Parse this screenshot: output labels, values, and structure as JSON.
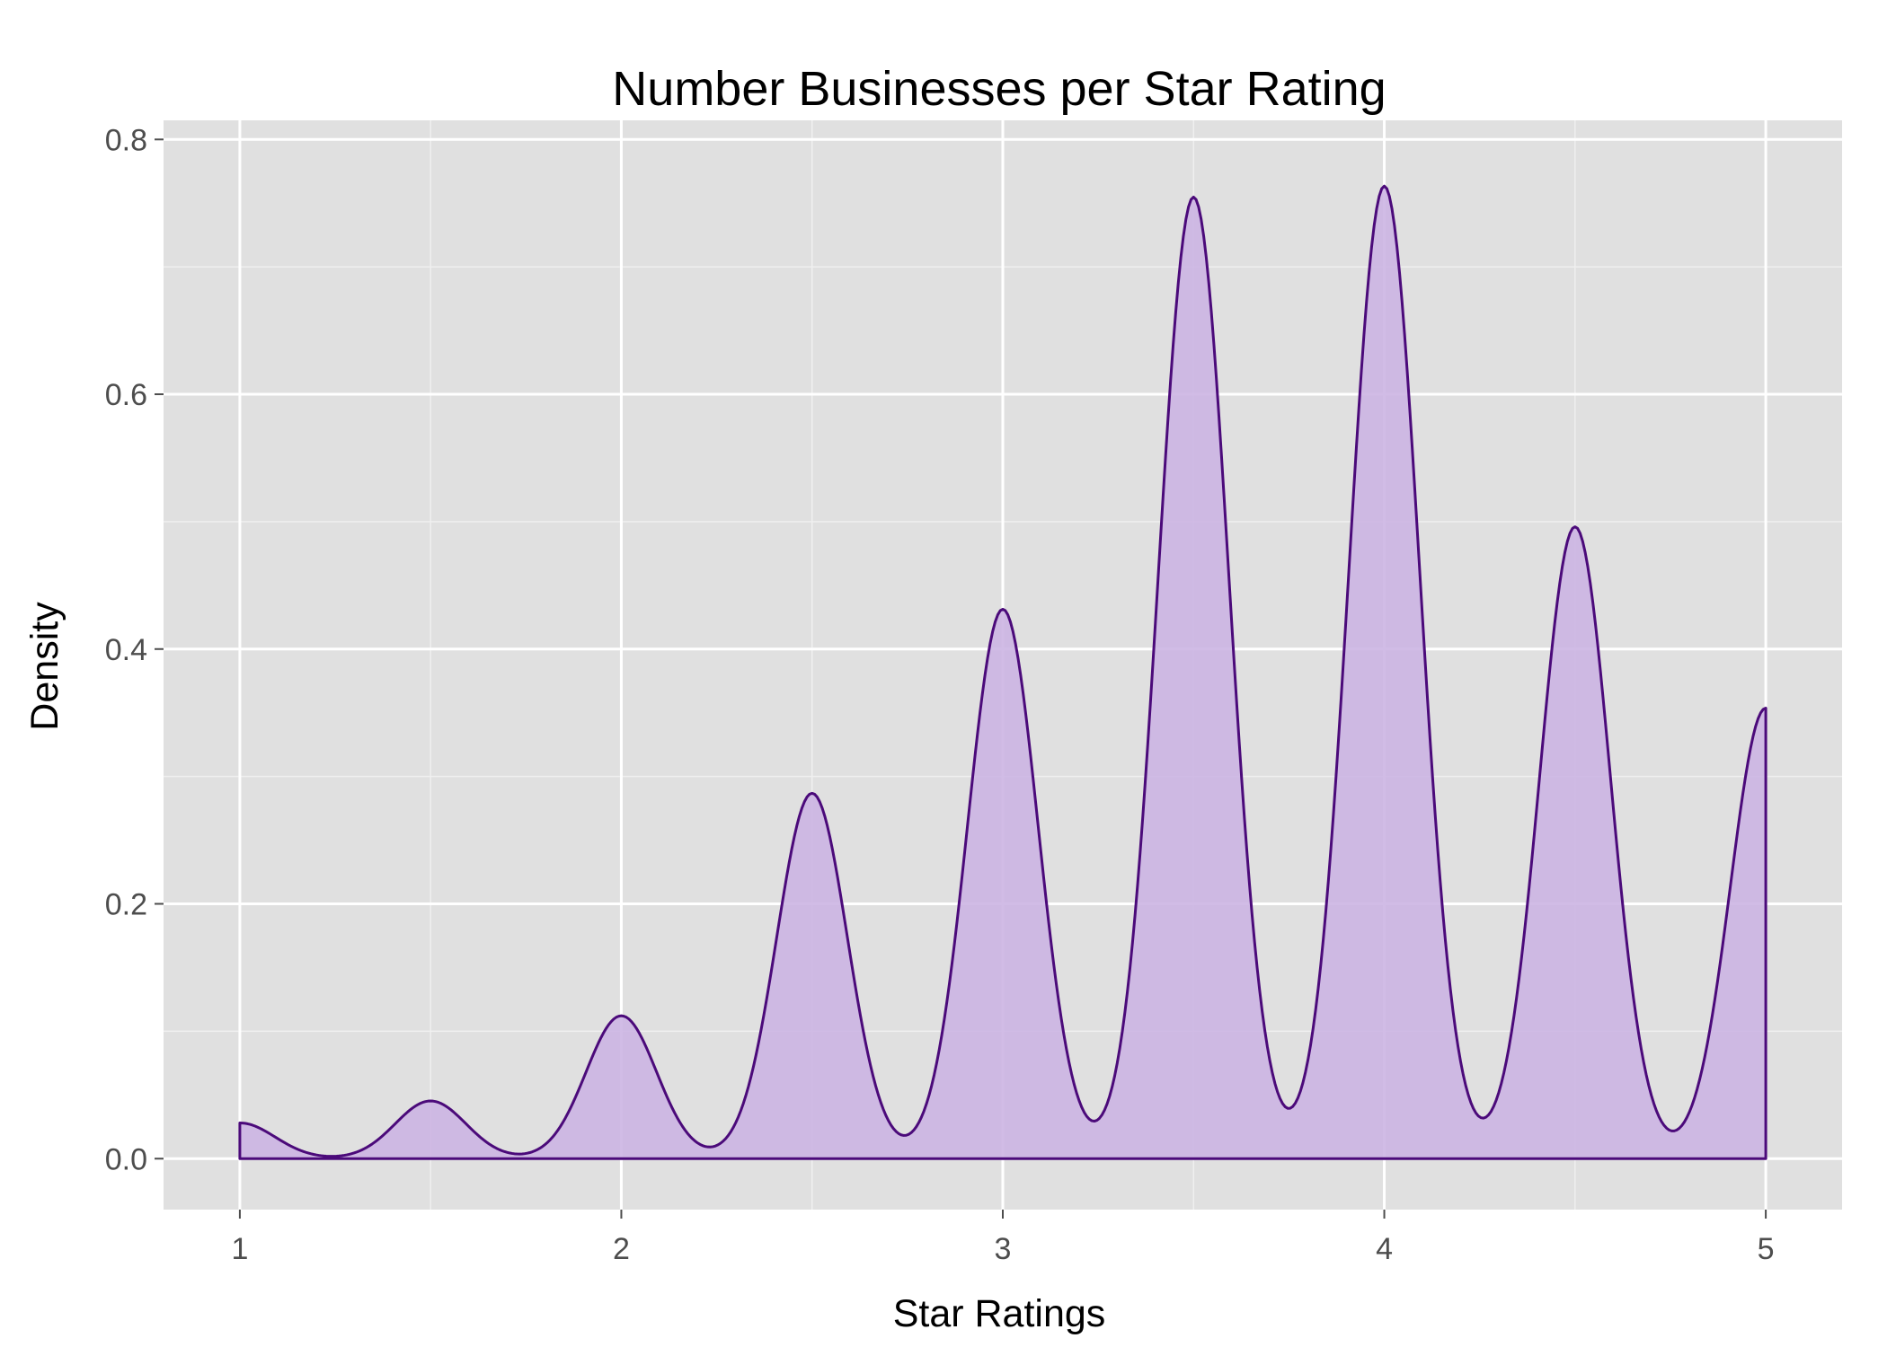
{
  "chart_data": {
    "type": "area",
    "title": "Number Businesses per Star Rating",
    "xlabel": "Star Ratings",
    "ylabel": "Density",
    "xlim": [
      0.8,
      5.2
    ],
    "ylim": [
      -0.04,
      0.815
    ],
    "x_ticks": [
      {
        "value": 1,
        "label": "1"
      },
      {
        "value": 2,
        "label": "2"
      },
      {
        "value": 3,
        "label": "3"
      },
      {
        "value": 4,
        "label": "4"
      },
      {
        "value": 5,
        "label": "5"
      }
    ],
    "y_ticks": [
      {
        "value": 0,
        "label": "0.0"
      },
      {
        "value": 0.2,
        "label": "0.2"
      },
      {
        "value": 0.4,
        "label": "0.4"
      },
      {
        "value": 0.6,
        "label": "0.6"
      },
      {
        "value": 0.8,
        "label": "0.8"
      }
    ],
    "grid": true,
    "fill_color": "#cbb3e3",
    "line_color": "#4b0a7a",
    "panel_color": "#e0e0e0",
    "grid_color": "#ffffff",
    "density_components": {
      "bandwidth": 0.0925,
      "weights": [
        {
          "x": 1.0,
          "w": 0.0065
        },
        {
          "x": 1.5,
          "w": 0.0105
        },
        {
          "x": 2.0,
          "w": 0.026
        },
        {
          "x": 2.5,
          "w": 0.0665
        },
        {
          "x": 3.0,
          "w": 0.1
        },
        {
          "x": 3.5,
          "w": 0.175
        },
        {
          "x": 4.0,
          "w": 0.177
        },
        {
          "x": 4.5,
          "w": 0.115
        },
        {
          "x": 5.0,
          "w": 0.082
        }
      ]
    },
    "series": [
      {
        "x": [
          1.0,
          1.25,
          1.5,
          1.72,
          2.0,
          2.22,
          2.5,
          2.73,
          3.0,
          3.24,
          3.5,
          3.75,
          4.0,
          4.26,
          4.5,
          4.76,
          5.0
        ],
        "y": [
          0.032,
          0.009,
          0.049,
          0.018,
          0.117,
          0.042,
          0.292,
          0.082,
          0.438,
          0.131,
          0.762,
          0.175,
          0.773,
          0.141,
          0.505,
          0.098,
          0.367
        ]
      }
    ]
  }
}
